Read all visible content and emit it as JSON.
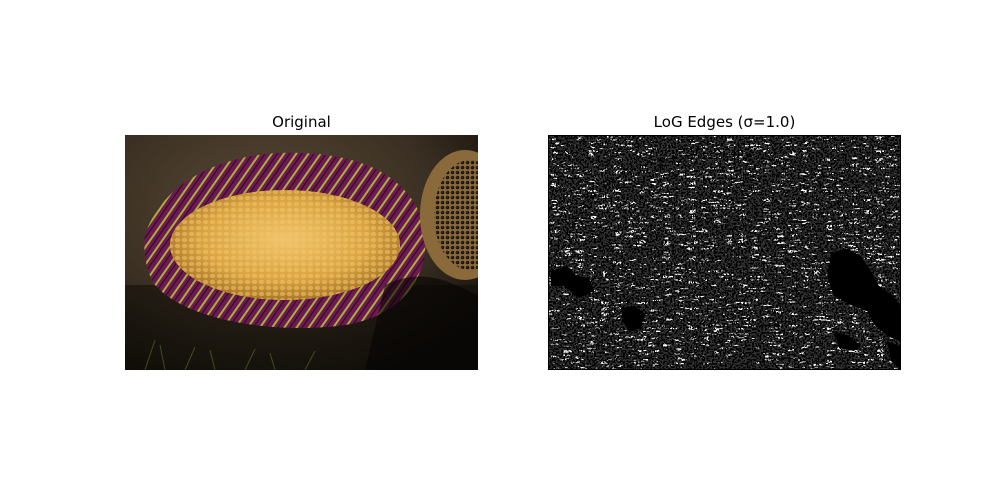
{
  "figure": {
    "left_panel": {
      "title": "Original",
      "image_description": "Photograph of a pile of yellow corn kernels on a purple-and-green striped cloth, lying on dark soil, with a woven basket of dark seeds at the right edge"
    },
    "right_panel": {
      "title": "LoG Edges (σ=1.0)",
      "image_description": "Binary edge map (black edges on white background) from a Laplacian-of-Gaussian filter applied to the same photograph"
    }
  },
  "colors": {
    "background": "#ffffff",
    "soil_dark": "#2b2318",
    "corn": "#d9a441",
    "cloth_purple": "#7a1f5c",
    "cloth_green": "#7d8a2c",
    "basket": "#8a6a3a",
    "edge": "#000000"
  }
}
